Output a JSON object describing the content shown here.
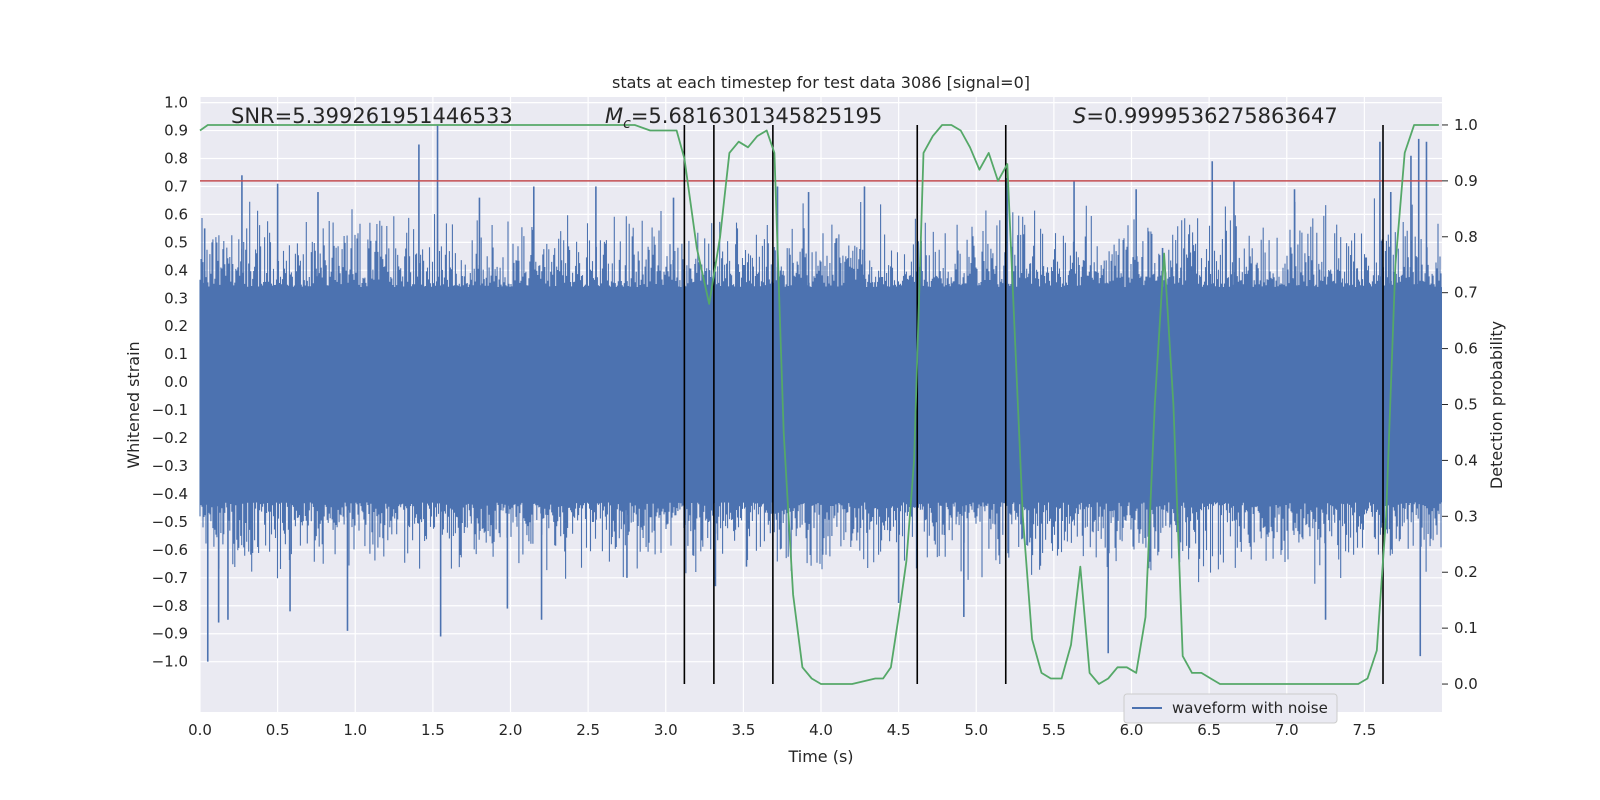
{
  "chart_data": {
    "type": "line",
    "title": "stats at each timestep for test data 3086 [signal=0]",
    "xlabel": "Time (s)",
    "ylabel": "Whitened strain",
    "ylabel_right": "Detection probability",
    "xlim": [
      0,
      8
    ],
    "ylim": [
      -1.18,
      1.02
    ],
    "ylim_right": [
      -0.05,
      1.05
    ],
    "x_ticks": [
      "0.0",
      "0.5",
      "1.0",
      "1.5",
      "2.0",
      "2.5",
      "3.0",
      "3.5",
      "4.0",
      "4.5",
      "5.0",
      "5.5",
      "6.0",
      "6.5",
      "7.0",
      "7.5"
    ],
    "y_ticks": [
      "1.0",
      "0.9",
      "0.8",
      "0.7",
      "0.6",
      "0.5",
      "0.4",
      "0.3",
      "0.2",
      "0.1",
      "0.0",
      "−0.1",
      "−0.2",
      "−0.3",
      "−0.4",
      "−0.5",
      "−0.6",
      "−0.7",
      "−0.8",
      "−0.9",
      "−1.0"
    ],
    "y_ticks_right": [
      "1.0",
      "0.9",
      "0.8",
      "0.7",
      "0.6",
      "0.5",
      "0.4",
      "0.3",
      "0.2",
      "0.1",
      "0.0"
    ],
    "annotations": {
      "snr": "SNR=5.399261951446533",
      "mc_symbol": "M",
      "mc_sub": "c",
      "mc_value": "=5.6816301345825195",
      "s_symbol": "S",
      "s_value": "=0.9999536275863647"
    },
    "threshold": {
      "value": 0.9,
      "axis": "right",
      "color": "#c44e52"
    },
    "vertical_lines_x": [
      3.12,
      3.31,
      3.69,
      4.62,
      5.19,
      7.62
    ],
    "waveform": {
      "name": "waveform with noise",
      "color": "#4c72b0",
      "noise_band": [
        -0.43,
        0.34
      ],
      "spikes": [
        [
          0.03,
          0.55
        ],
        [
          0.05,
          -1.0
        ],
        [
          0.12,
          -0.86
        ],
        [
          0.18,
          -0.85
        ],
        [
          0.27,
          0.74
        ],
        [
          0.5,
          0.71
        ],
        [
          0.58,
          -0.82
        ],
        [
          0.76,
          0.68
        ],
        [
          0.95,
          -0.89
        ],
        [
          1.41,
          0.85
        ],
        [
          1.53,
          0.92
        ],
        [
          1.55,
          -0.91
        ],
        [
          1.8,
          0.66
        ],
        [
          1.98,
          -0.81
        ],
        [
          2.15,
          0.7
        ],
        [
          2.2,
          -0.85
        ],
        [
          2.55,
          0.7
        ],
        [
          2.75,
          -0.7
        ],
        [
          3.05,
          0.66
        ],
        [
          3.32,
          -0.73
        ],
        [
          3.52,
          -0.66
        ],
        [
          3.72,
          0.7
        ],
        [
          3.92,
          0.68
        ],
        [
          4.28,
          0.7
        ],
        [
          4.5,
          -0.79
        ],
        [
          4.92,
          -0.84
        ],
        [
          5.2,
          0.73
        ],
        [
          5.63,
          0.72
        ],
        [
          5.85,
          -0.97
        ],
        [
          6.03,
          0.69
        ],
        [
          6.2,
          0.48
        ],
        [
          6.52,
          0.79
        ],
        [
          6.66,
          0.72
        ],
        [
          7.05,
          0.69
        ],
        [
          7.25,
          -0.85
        ],
        [
          7.6,
          0.86
        ],
        [
          7.67,
          0.68
        ],
        [
          7.8,
          0.81
        ],
        [
          7.85,
          0.87
        ],
        [
          7.86,
          -0.98
        ],
        [
          7.9,
          0.86
        ]
      ]
    },
    "detection_probability": {
      "color": "#55a868",
      "x": [
        0.0,
        0.05,
        0.3,
        2.8,
        2.9,
        3.0,
        3.07,
        3.12,
        3.2,
        3.28,
        3.35,
        3.41,
        3.47,
        3.53,
        3.59,
        3.65,
        3.7,
        3.76,
        3.82,
        3.88,
        3.94,
        4.0,
        4.2,
        4.35,
        4.4,
        4.45,
        4.5,
        4.55,
        4.6,
        4.66,
        4.72,
        4.78,
        4.84,
        4.9,
        4.96,
        5.02,
        5.08,
        5.14,
        5.2,
        5.3,
        5.36,
        5.42,
        5.48,
        5.55,
        5.61,
        5.67,
        5.73,
        5.79,
        5.85,
        5.91,
        5.97,
        6.03,
        6.09,
        6.15,
        6.21,
        6.27,
        6.33,
        6.39,
        6.45,
        6.51,
        6.57,
        6.63,
        6.69,
        6.75,
        6.81,
        7.3,
        7.4,
        7.46,
        7.52,
        7.58,
        7.64,
        7.7,
        7.76,
        7.82,
        7.9,
        7.98
      ],
      "y": [
        0.99,
        1.0,
        1.0,
        1.0,
        0.99,
        0.99,
        0.99,
        0.94,
        0.78,
        0.68,
        0.8,
        0.95,
        0.97,
        0.96,
        0.98,
        0.99,
        0.95,
        0.45,
        0.16,
        0.03,
        0.01,
        0.0,
        0.0,
        0.01,
        0.01,
        0.03,
        0.12,
        0.22,
        0.4,
        0.95,
        0.98,
        1.0,
        1.0,
        0.99,
        0.96,
        0.92,
        0.95,
        0.9,
        0.93,
        0.3,
        0.08,
        0.02,
        0.01,
        0.01,
        0.07,
        0.21,
        0.02,
        0.0,
        0.01,
        0.03,
        0.03,
        0.02,
        0.12,
        0.5,
        0.77,
        0.5,
        0.05,
        0.02,
        0.02,
        0.01,
        0.0,
        0.0,
        0.0,
        0.0,
        0.0,
        0.0,
        0.0,
        0.0,
        0.01,
        0.06,
        0.3,
        0.75,
        0.95,
        1.0,
        1.0,
        1.0
      ]
    },
    "legend": {
      "placement": "bottom-center-right",
      "entries": [
        "waveform with noise"
      ]
    },
    "grid": true
  }
}
